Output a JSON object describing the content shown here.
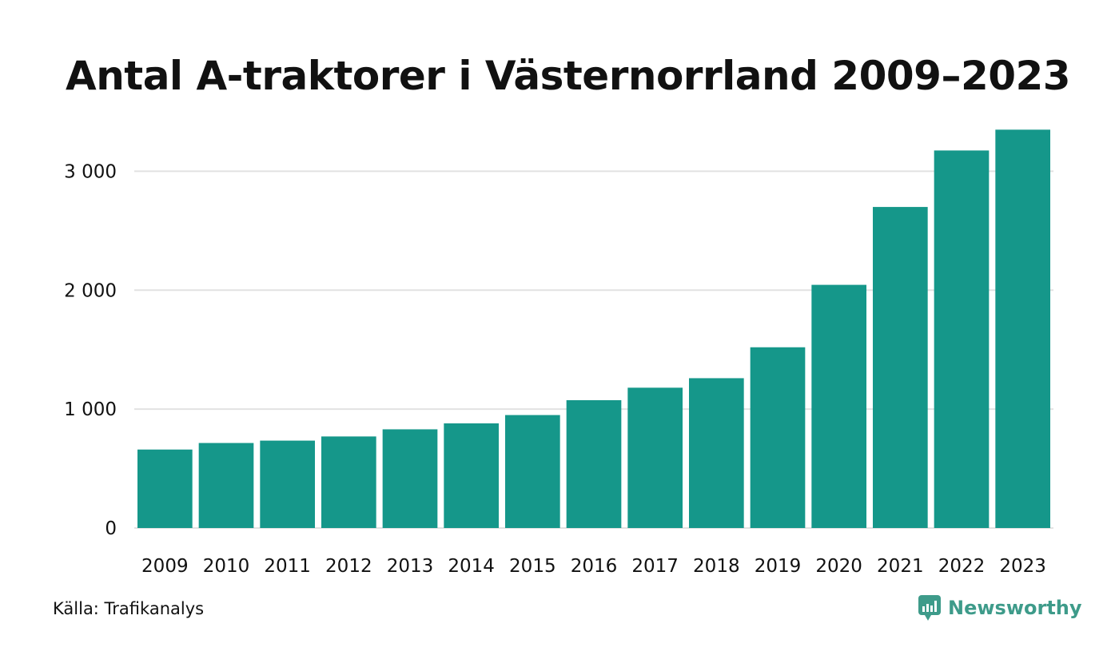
{
  "chart_data": {
    "type": "bar",
    "title": "Antal A-traktorer i Västernorrland 2009–2023",
    "xlabel": "",
    "ylabel": "",
    "categories": [
      "2009",
      "2010",
      "2011",
      "2012",
      "2013",
      "2014",
      "2015",
      "2016",
      "2017",
      "2018",
      "2019",
      "2020",
      "2021",
      "2022",
      "2023"
    ],
    "values": [
      660,
      715,
      735,
      770,
      830,
      880,
      950,
      1075,
      1180,
      1260,
      1520,
      2045,
      2700,
      3175,
      3350
    ],
    "ylim": [
      0,
      3500
    ],
    "yticks": [
      0,
      1000,
      2000,
      3000
    ],
    "ytick_labels": [
      "0",
      "1 000",
      "2 000",
      "3 000"
    ],
    "grid": true,
    "bar_color": "#15978a"
  },
  "footer": {
    "source": "Källa: Trafikanalys",
    "brand": "Newsworthy",
    "brand_color": "#3e9b8a"
  }
}
